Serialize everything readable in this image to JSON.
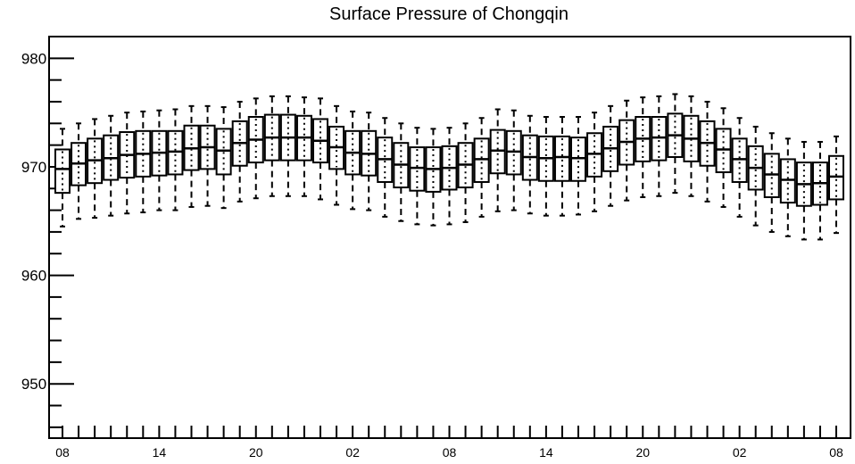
{
  "chart_data": {
    "type": "boxplot",
    "title": "Surface Pressure of Chongqin",
    "xlabel": "",
    "ylabel": "",
    "ylim": [
      945,
      982
    ],
    "yticks": [
      950,
      960,
      970,
      980
    ],
    "xtick_labels": [
      "08",
      "14",
      "20",
      "02",
      "08",
      "14",
      "20",
      "02",
      "08"
    ],
    "x_range_hours": [
      0,
      48
    ],
    "grid": false,
    "legend": "none",
    "boxes": [
      {
        "hour": 0,
        "min": 964.5,
        "q1": 967.6,
        "median": 969.8,
        "q3": 971.6,
        "max": 973.5
      },
      {
        "hour": 1,
        "min": 965.2,
        "q1": 968.3,
        "median": 970.3,
        "q3": 972.2,
        "max": 974.0
      },
      {
        "hour": 2,
        "min": 965.3,
        "q1": 968.5,
        "median": 970.6,
        "q3": 972.6,
        "max": 974.4
      },
      {
        "hour": 3,
        "min": 965.5,
        "q1": 968.8,
        "median": 970.8,
        "q3": 972.9,
        "max": 974.7
      },
      {
        "hour": 4,
        "min": 965.7,
        "q1": 969.0,
        "median": 971.1,
        "q3": 973.2,
        "max": 975.0
      },
      {
        "hour": 5,
        "min": 965.8,
        "q1": 969.1,
        "median": 971.2,
        "q3": 973.3,
        "max": 975.1
      },
      {
        "hour": 6,
        "min": 966.0,
        "q1": 969.2,
        "median": 971.3,
        "q3": 973.3,
        "max": 975.2
      },
      {
        "hour": 7,
        "min": 966.0,
        "q1": 969.3,
        "median": 971.4,
        "q3": 973.3,
        "max": 975.3
      },
      {
        "hour": 8,
        "min": 966.3,
        "q1": 969.7,
        "median": 971.7,
        "q3": 973.8,
        "max": 975.6
      },
      {
        "hour": 9,
        "min": 966.4,
        "q1": 969.8,
        "median": 971.8,
        "q3": 973.8,
        "max": 975.6
      },
      {
        "hour": 10,
        "min": 966.2,
        "q1": 969.3,
        "median": 971.5,
        "q3": 973.5,
        "max": 975.5
      },
      {
        "hour": 11,
        "min": 966.8,
        "q1": 970.1,
        "median": 972.2,
        "q3": 974.2,
        "max": 976.0
      },
      {
        "hour": 12,
        "min": 967.1,
        "q1": 970.4,
        "median": 972.5,
        "q3": 974.6,
        "max": 976.3
      },
      {
        "hour": 13,
        "min": 967.3,
        "q1": 970.6,
        "median": 972.7,
        "q3": 974.8,
        "max": 976.5
      },
      {
        "hour": 14,
        "min": 967.3,
        "q1": 970.6,
        "median": 972.7,
        "q3": 974.8,
        "max": 976.5
      },
      {
        "hour": 15,
        "min": 967.3,
        "q1": 970.6,
        "median": 972.7,
        "q3": 974.7,
        "max": 976.4
      },
      {
        "hour": 16,
        "min": 967.0,
        "q1": 970.4,
        "median": 972.4,
        "q3": 974.4,
        "max": 976.3
      },
      {
        "hour": 17,
        "min": 966.5,
        "q1": 969.8,
        "median": 971.8,
        "q3": 973.7,
        "max": 975.6
      },
      {
        "hour": 18,
        "min": 966.1,
        "q1": 969.3,
        "median": 971.3,
        "q3": 973.3,
        "max": 975.1
      },
      {
        "hour": 19,
        "min": 966.0,
        "q1": 969.2,
        "median": 971.2,
        "q3": 973.3,
        "max": 975.0
      },
      {
        "hour": 20,
        "min": 965.4,
        "q1": 968.6,
        "median": 970.7,
        "q3": 972.7,
        "max": 974.5
      },
      {
        "hour": 21,
        "min": 965.0,
        "q1": 968.1,
        "median": 970.2,
        "q3": 972.2,
        "max": 974.0
      },
      {
        "hour": 22,
        "min": 964.7,
        "q1": 967.8,
        "median": 969.9,
        "q3": 971.8,
        "max": 973.6
      },
      {
        "hour": 23,
        "min": 964.6,
        "q1": 967.7,
        "median": 969.8,
        "q3": 971.8,
        "max": 973.5
      },
      {
        "hour": 24,
        "min": 964.7,
        "q1": 967.9,
        "median": 969.9,
        "q3": 971.9,
        "max": 973.6
      },
      {
        "hour": 25,
        "min": 964.9,
        "q1": 968.1,
        "median": 970.2,
        "q3": 972.2,
        "max": 974.0
      },
      {
        "hour": 26,
        "min": 965.4,
        "q1": 968.6,
        "median": 970.7,
        "q3": 972.6,
        "max": 974.5
      },
      {
        "hour": 27,
        "min": 965.9,
        "q1": 969.4,
        "median": 971.5,
        "q3": 973.4,
        "max": 975.3
      },
      {
        "hour": 28,
        "min": 966.0,
        "q1": 969.3,
        "median": 971.4,
        "q3": 973.3,
        "max": 975.2
      },
      {
        "hour": 29,
        "min": 965.7,
        "q1": 968.8,
        "median": 970.9,
        "q3": 972.9,
        "max": 974.7
      },
      {
        "hour": 30,
        "min": 965.5,
        "q1": 968.7,
        "median": 970.8,
        "q3": 972.8,
        "max": 974.6
      },
      {
        "hour": 31,
        "min": 965.5,
        "q1": 968.7,
        "median": 970.9,
        "q3": 972.8,
        "max": 974.6
      },
      {
        "hour": 32,
        "min": 965.6,
        "q1": 968.7,
        "median": 970.8,
        "q3": 972.7,
        "max": 974.6
      },
      {
        "hour": 33,
        "min": 965.9,
        "q1": 969.1,
        "median": 971.2,
        "q3": 973.1,
        "max": 975.0
      },
      {
        "hour": 34,
        "min": 966.4,
        "q1": 969.6,
        "median": 971.7,
        "q3": 973.7,
        "max": 975.6
      },
      {
        "hour": 35,
        "min": 966.9,
        "q1": 970.2,
        "median": 972.3,
        "q3": 974.3,
        "max": 976.1
      },
      {
        "hour": 36,
        "min": 967.2,
        "q1": 970.5,
        "median": 972.6,
        "q3": 974.6,
        "max": 976.4
      },
      {
        "hour": 37,
        "min": 967.3,
        "q1": 970.6,
        "median": 972.7,
        "q3": 974.6,
        "max": 976.5
      },
      {
        "hour": 38,
        "min": 967.6,
        "q1": 970.9,
        "median": 972.9,
        "q3": 974.9,
        "max": 976.7
      },
      {
        "hour": 39,
        "min": 967.3,
        "q1": 970.5,
        "median": 972.6,
        "q3": 974.7,
        "max": 976.5
      },
      {
        "hour": 40,
        "min": 966.8,
        "q1": 970.1,
        "median": 972.2,
        "q3": 974.2,
        "max": 976.0
      },
      {
        "hour": 41,
        "min": 966.3,
        "q1": 969.5,
        "median": 971.6,
        "q3": 973.5,
        "max": 975.4
      },
      {
        "hour": 42,
        "min": 965.4,
        "q1": 968.6,
        "median": 970.7,
        "q3": 972.6,
        "max": 974.5
      },
      {
        "hour": 43,
        "min": 964.6,
        "q1": 967.9,
        "median": 969.9,
        "q3": 971.9,
        "max": 973.7
      },
      {
        "hour": 44,
        "min": 964.0,
        "q1": 967.2,
        "median": 969.3,
        "q3": 971.2,
        "max": 973.1
      },
      {
        "hour": 45,
        "min": 963.6,
        "q1": 966.7,
        "median": 968.8,
        "q3": 970.7,
        "max": 972.6
      },
      {
        "hour": 46,
        "min": 963.3,
        "q1": 966.4,
        "median": 968.4,
        "q3": 970.4,
        "max": 972.3
      },
      {
        "hour": 47,
        "min": 963.3,
        "q1": 966.5,
        "median": 968.5,
        "q3": 970.4,
        "max": 972.3
      },
      {
        "hour": 48,
        "min": 963.9,
        "q1": 967.0,
        "median": 969.1,
        "q3": 971.0,
        "max": 972.8
      }
    ]
  }
}
